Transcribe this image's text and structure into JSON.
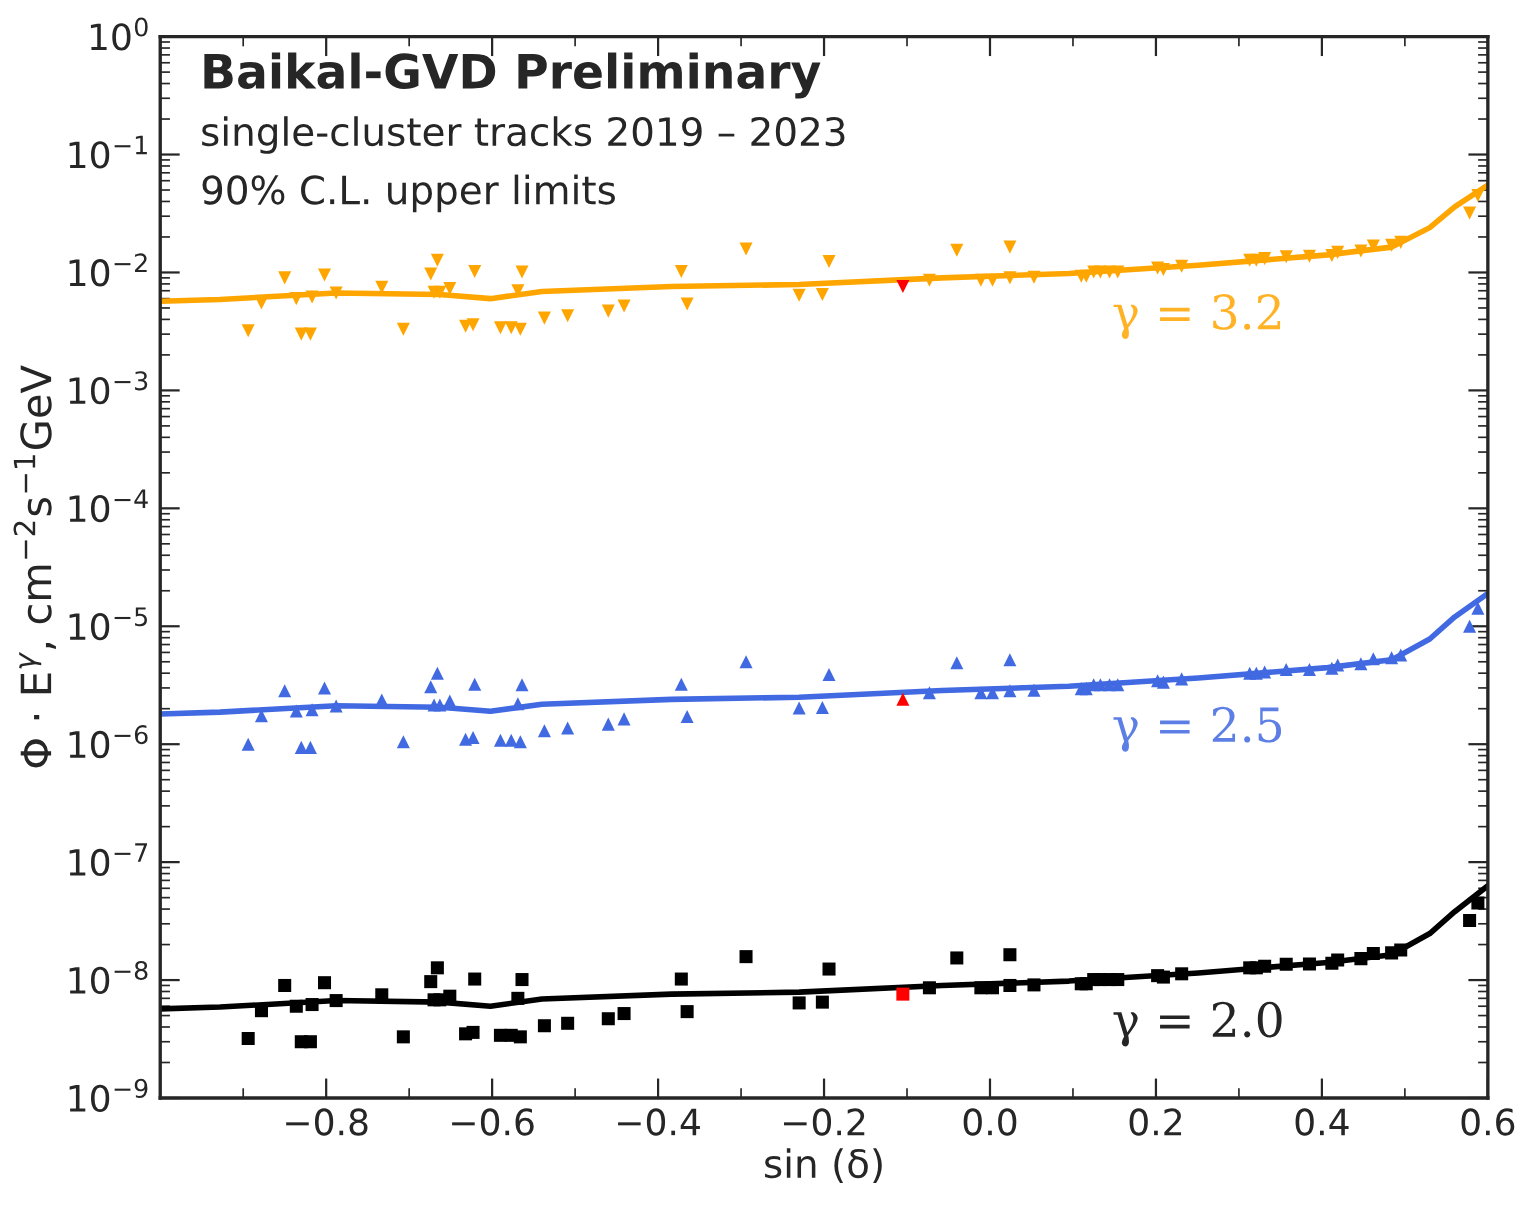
{
  "chart_data": {
    "type": "scatter",
    "title": "Baikal-GVD Preliminary",
    "subtitle": "single-cluster tracks 2019 – 2023",
    "annotations": [
      "90% C.L. upper limits"
    ],
    "xlabel": "sin (δ)",
    "ylabel": "Φ · E$^{γ}$, cm$^{−2}$s$^{−1}$GeV",
    "log": "y",
    "grid": false,
    "xlim": [
      -1.0,
      0.6
    ],
    "xticks": [
      {
        "value": -0.8,
        "label": "−0.8"
      },
      {
        "value": -0.6,
        "label": "−0.6"
      },
      {
        "value": -0.4,
        "label": "−0.4"
      },
      {
        "value": -0.2,
        "label": "−0.2"
      },
      {
        "value": 0.0,
        "label": "0.0"
      },
      {
        "value": 0.2,
        "label": "0.2"
      },
      {
        "value": 0.4,
        "label": "0.4"
      },
      {
        "value": 0.6,
        "label": "0.6"
      }
    ],
    "ylim": [
      1e-09,
      1
    ],
    "yticks": [
      {
        "value": 1e-09,
        "label": "10$^{−9}$"
      },
      {
        "value": 1e-08,
        "label": "10$^{−8}$"
      },
      {
        "value": 1e-07,
        "label": "10$^{−7}$"
      },
      {
        "value": 1e-06,
        "label": "10$^{−6}$"
      },
      {
        "value": 1e-05,
        "label": "10$^{−5}$"
      },
      {
        "value": 0.0001,
        "label": "10$^{−4}$"
      },
      {
        "value": 0.001,
        "label": "10$^{−3}$"
      },
      {
        "value": 0.01,
        "label": "10$^{−2}$"
      },
      {
        "value": 0.1,
        "label": "10$^{−1}$"
      },
      {
        "value": 1,
        "label": "10$^{0}$"
      }
    ],
    "series": [
      {
        "type": "line",
        "name": "γ = 3.2",
        "color": "#ffa500",
        "x": [
          -1.0,
          -0.928,
          -0.788,
          -0.663,
          -0.602,
          -0.54,
          -0.384,
          -0.23,
          -0.058,
          0.095,
          0.251,
          0.407,
          0.484,
          0.53,
          0.56,
          0.6
        ],
        "values": [
          0.0057,
          0.0059,
          0.0067,
          0.0065,
          0.006,
          0.0069,
          0.0076,
          0.0079,
          0.009,
          0.0098,
          0.0115,
          0.0141,
          0.0164,
          0.024,
          0.036,
          0.055
        ]
      },
      {
        "marker": "triangle_down",
        "color": "#ffa500",
        "x": [
          -0.894,
          -0.878,
          -0.85,
          -0.836,
          -0.83,
          -0.819,
          -0.817,
          -0.802,
          -0.788,
          -0.733,
          -0.707,
          -0.674,
          -0.666,
          -0.67,
          -0.663,
          -0.651,
          -0.632,
          -0.623,
          -0.621,
          -0.59,
          -0.577,
          -0.569,
          -0.566,
          -0.564,
          -0.537,
          -0.509,
          -0.46,
          -0.441,
          -0.372,
          -0.365,
          -0.294,
          -0.23,
          -0.202,
          -0.194,
          -0.073,
          -0.04,
          -0.011,
          0.003,
          0.024,
          0.024,
          0.053,
          0.11,
          0.116,
          0.125,
          0.133,
          0.144,
          0.154,
          0.202,
          0.209,
          0.231,
          0.313,
          0.321,
          0.331,
          0.357,
          0.385,
          0.412,
          0.419,
          0.447,
          0.462,
          0.484,
          0.495,
          0.578,
          0.588
        ],
        "values": [
          0.0032,
          0.0055,
          0.009,
          0.006,
          0.003,
          0.003,
          0.0062,
          0.0095,
          0.0067,
          0.0075,
          0.0033,
          0.0097,
          0.0127,
          0.0068,
          0.0068,
          0.0073,
          0.0035,
          0.0036,
          0.0102,
          0.0034,
          0.0034,
          0.007,
          0.0033,
          0.0101,
          0.0041,
          0.0043,
          0.0047,
          0.0052,
          0.0102,
          0.0054,
          0.0158,
          0.0064,
          0.0065,
          0.0124,
          0.0086,
          0.0154,
          0.0086,
          0.0086,
          0.0164,
          0.009,
          0.0091,
          0.0093,
          0.0093,
          0.0101,
          0.0101,
          0.0101,
          0.0101,
          0.0109,
          0.0106,
          0.0113,
          0.0127,
          0.0127,
          0.0131,
          0.0136,
          0.0137,
          0.0139,
          0.0148,
          0.0152,
          0.0168,
          0.017,
          0.018,
          0.032,
          0.045
        ]
      },
      {
        "marker": "triangle_down",
        "color": "#ff0000",
        "x": [
          -0.105
        ],
        "values": [
          0.0076
        ]
      },
      {
        "type": "line",
        "name": "γ = 2.5",
        "color": "#4169e1",
        "x": [
          -1.0,
          -0.928,
          -0.788,
          -0.663,
          -0.602,
          -0.54,
          -0.384,
          -0.23,
          -0.058,
          0.095,
          0.251,
          0.407,
          0.484,
          0.53,
          0.56,
          0.6
        ],
        "values": [
          1.8e-06,
          1.87e-06,
          2.12e-06,
          2.06e-06,
          1.9e-06,
          2.18e-06,
          2.4e-06,
          2.5e-06,
          2.85e-06,
          3.1e-06,
          3.64e-06,
          4.46e-06,
          5.19e-06,
          7.8e-06,
          1.2e-05,
          1.9e-05
        ]
      },
      {
        "marker": "triangle",
        "color": "#4169e1",
        "x": [
          -0.894,
          -0.878,
          -0.85,
          -0.836,
          -0.83,
          -0.819,
          -0.817,
          -0.802,
          -0.788,
          -0.733,
          -0.707,
          -0.674,
          -0.666,
          -0.67,
          -0.663,
          -0.651,
          -0.632,
          -0.623,
          -0.621,
          -0.59,
          -0.577,
          -0.569,
          -0.566,
          -0.564,
          -0.537,
          -0.509,
          -0.46,
          -0.441,
          -0.372,
          -0.365,
          -0.294,
          -0.23,
          -0.202,
          -0.194,
          -0.073,
          -0.04,
          -0.011,
          0.003,
          0.024,
          0.024,
          0.053,
          0.11,
          0.116,
          0.125,
          0.133,
          0.144,
          0.154,
          0.202,
          0.209,
          0.231,
          0.313,
          0.321,
          0.331,
          0.357,
          0.385,
          0.412,
          0.419,
          0.447,
          0.462,
          0.484,
          0.495,
          0.578,
          0.588
        ],
        "values": [
          1e-06,
          1.74e-06,
          2.84e-06,
          1.91e-06,
          9.4e-07,
          9.4e-07,
          1.96e-06,
          3e-06,
          2.11e-06,
          2.37e-06,
          1.05e-06,
          3.07e-06,
          4e-06,
          2.15e-06,
          2.15e-06,
          2.32e-06,
          1.1e-06,
          1.14e-06,
          3.23e-06,
          1.08e-06,
          1.08e-06,
          2.2e-06,
          1.05e-06,
          3.19e-06,
          1.3e-06,
          1.37e-06,
          1.48e-06,
          1.64e-06,
          3.23e-06,
          1.72e-06,
          5e-06,
          2.03e-06,
          2.05e-06,
          3.9e-06,
          2.73e-06,
          4.9e-06,
          2.73e-06,
          2.73e-06,
          5.2e-06,
          2.84e-06,
          2.87e-06,
          2.96e-06,
          2.96e-06,
          3.19e-06,
          3.19e-06,
          3.19e-06,
          3.19e-06,
          3.45e-06,
          3.36e-06,
          3.58e-06,
          4e-06,
          4e-06,
          4.1e-06,
          4.3e-06,
          4.3e-06,
          4.4e-06,
          4.7e-06,
          4.8e-06,
          5.3e-06,
          5.4e-06,
          5.7e-06,
          1e-05,
          1.42e-05
        ]
      },
      {
        "marker": "triangle",
        "color": "#ff0000",
        "x": [
          -0.105
        ],
        "values": [
          2.4e-06
        ]
      },
      {
        "type": "line",
        "name": "γ = 2.0",
        "color": "#000000",
        "x": [
          -1.0,
          -0.928,
          -0.788,
          -0.663,
          -0.602,
          -0.54,
          -0.384,
          -0.23,
          -0.058,
          0.095,
          0.251,
          0.407,
          0.484,
          0.53,
          0.56,
          0.6
        ],
        "values": [
          5.7e-09,
          5.9e-09,
          6.7e-09,
          6.5e-09,
          6e-09,
          6.9e-09,
          7.6e-09,
          7.9e-09,
          9e-09,
          9.8e-09,
          1.15e-08,
          1.41e-08,
          1.64e-08,
          2.48e-08,
          3.8e-08,
          6.3e-08
        ]
      },
      {
        "marker": "square",
        "color": "#000000",
        "x": [
          -0.894,
          -0.878,
          -0.85,
          -0.836,
          -0.83,
          -0.819,
          -0.817,
          -0.802,
          -0.788,
          -0.733,
          -0.707,
          -0.674,
          -0.666,
          -0.67,
          -0.663,
          -0.651,
          -0.632,
          -0.623,
          -0.621,
          -0.59,
          -0.577,
          -0.569,
          -0.566,
          -0.564,
          -0.537,
          -0.509,
          -0.46,
          -0.441,
          -0.372,
          -0.365,
          -0.294,
          -0.23,
          -0.202,
          -0.194,
          -0.073,
          -0.04,
          -0.011,
          0.003,
          0.024,
          0.024,
          0.053,
          0.11,
          0.116,
          0.125,
          0.133,
          0.144,
          0.154,
          0.202,
          0.209,
          0.231,
          0.313,
          0.321,
          0.331,
          0.357,
          0.385,
          0.412,
          0.419,
          0.447,
          0.462,
          0.484,
          0.495,
          0.578,
          0.588
        ],
        "values": [
          3.2e-09,
          5.5e-09,
          9e-09,
          6e-09,
          3e-09,
          3e-09,
          6.2e-09,
          9.5e-09,
          6.7e-09,
          7.5e-09,
          3.3e-09,
          9.7e-09,
          1.27e-08,
          6.8e-09,
          6.8e-09,
          7.3e-09,
          3.5e-09,
          3.6e-09,
          1.02e-08,
          3.4e-09,
          3.4e-09,
          7e-09,
          3.3e-09,
          1.01e-08,
          4.1e-09,
          4.3e-09,
          4.7e-09,
          5.2e-09,
          1.02e-08,
          5.4e-09,
          1.58e-08,
          6.4e-09,
          6.5e-09,
          1.24e-08,
          8.6e-09,
          1.54e-08,
          8.6e-09,
          8.6e-09,
          1.64e-08,
          9e-09,
          9.1e-09,
          9.3e-09,
          9.3e-09,
          1.01e-08,
          1.01e-08,
          1.01e-08,
          1.01e-08,
          1.09e-08,
          1.06e-08,
          1.13e-08,
          1.27e-08,
          1.27e-08,
          1.31e-08,
          1.36e-08,
          1.37e-08,
          1.39e-08,
          1.48e-08,
          1.52e-08,
          1.68e-08,
          1.7e-08,
          1.8e-08,
          3.2e-08,
          4.5e-08
        ]
      },
      {
        "marker": "square",
        "color": "#ff0000",
        "x": [
          -0.105
        ],
        "values": [
          7.6e-09
        ]
      }
    ]
  }
}
